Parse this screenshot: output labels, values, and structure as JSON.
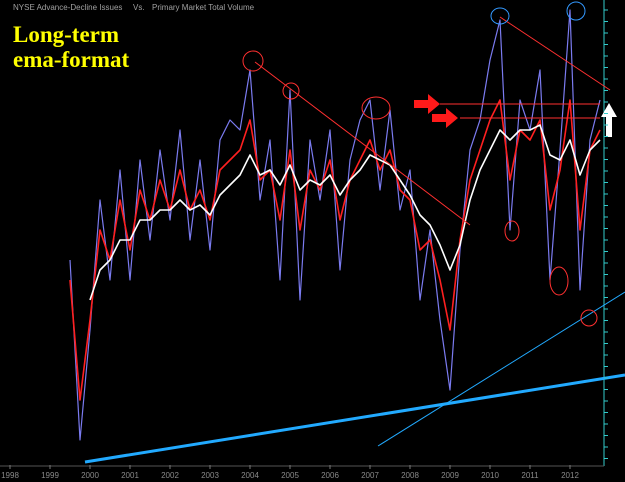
{
  "chart_data": {
    "type": "line",
    "title": "NYSE Advance-Decline Issues",
    "subtitle_separator": "Vs.",
    "subtitle": "Primary Market Total Volume",
    "annotations": [
      "Long-term",
      "ema-format"
    ],
    "x": [
      1999.5,
      1999.75,
      2000,
      2000.25,
      2000.5,
      2000.75,
      2001,
      2001.25,
      2001.5,
      2001.75,
      2002,
      2002.25,
      2002.5,
      2002.75,
      2003,
      2003.25,
      2003.5,
      2003.75,
      2004,
      2004.25,
      2004.5,
      2004.75,
      2005,
      2005.25,
      2005.5,
      2005.75,
      2006,
      2006.25,
      2006.5,
      2006.75,
      2007,
      2007.25,
      2007.5,
      2007.75,
      2008,
      2008.25,
      2008.5,
      2008.75,
      2009,
      2009.25,
      2009.5,
      2009.75,
      2010,
      2010.25,
      2010.5,
      2010.75,
      2011,
      2011.25,
      2011.5,
      2011.75,
      2012,
      2012.25,
      2012.5,
      2012.75
    ],
    "series": [
      {
        "color": "#7b7bf0",
        "values": [
          41,
          5,
          27,
          53,
          37,
          59,
          37,
          61,
          45,
          63,
          49,
          67,
          45,
          61,
          43,
          65,
          69,
          67,
          79,
          53,
          65,
          37,
          75,
          33,
          65,
          53,
          67,
          39,
          61,
          69,
          73,
          55,
          71,
          51,
          59,
          33,
          47,
          29,
          15,
          43,
          63,
          69,
          81,
          89,
          47,
          73,
          67,
          79,
          37,
          63,
          91,
          35,
          65,
          73
        ]
      },
      {
        "color": "#ff2020",
        "values": [
          37,
          13,
          29,
          47,
          41,
          53,
          43,
          55,
          49,
          57,
          51,
          59,
          51,
          55,
          49,
          59,
          61,
          63,
          69,
          57,
          59,
          49,
          63,
          47,
          59,
          55,
          61,
          49,
          57,
          61,
          65,
          59,
          63,
          55,
          53,
          43,
          45,
          37,
          27,
          45,
          57,
          63,
          69,
          73,
          57,
          67,
          65,
          69,
          51,
          59,
          73,
          47,
          63,
          67
        ]
      },
      {
        "color": "#ffffff",
        "values": [
          null,
          null,
          33,
          39,
          41,
          45,
          45,
          49,
          49,
          51,
          51,
          53,
          51,
          52,
          50,
          54,
          56,
          58,
          62,
          58,
          59,
          56,
          60,
          55,
          57,
          56,
          58,
          54,
          57,
          59,
          62,
          61,
          60,
          57,
          54,
          50,
          48,
          44,
          39,
          44,
          53,
          59,
          63,
          67,
          65,
          67,
          67,
          68,
          62,
          61,
          65,
          58,
          63,
          65
        ]
      }
    ],
    "xlim": [
      1997.75,
      2012.85
    ],
    "xticks": [
      1998,
      1999,
      2000,
      2001,
      2002,
      2003,
      2004,
      2005,
      2006,
      2007,
      2008,
      2009,
      2010,
      2011,
      2012
    ],
    "ylim": [
      0,
      93
    ]
  }
}
